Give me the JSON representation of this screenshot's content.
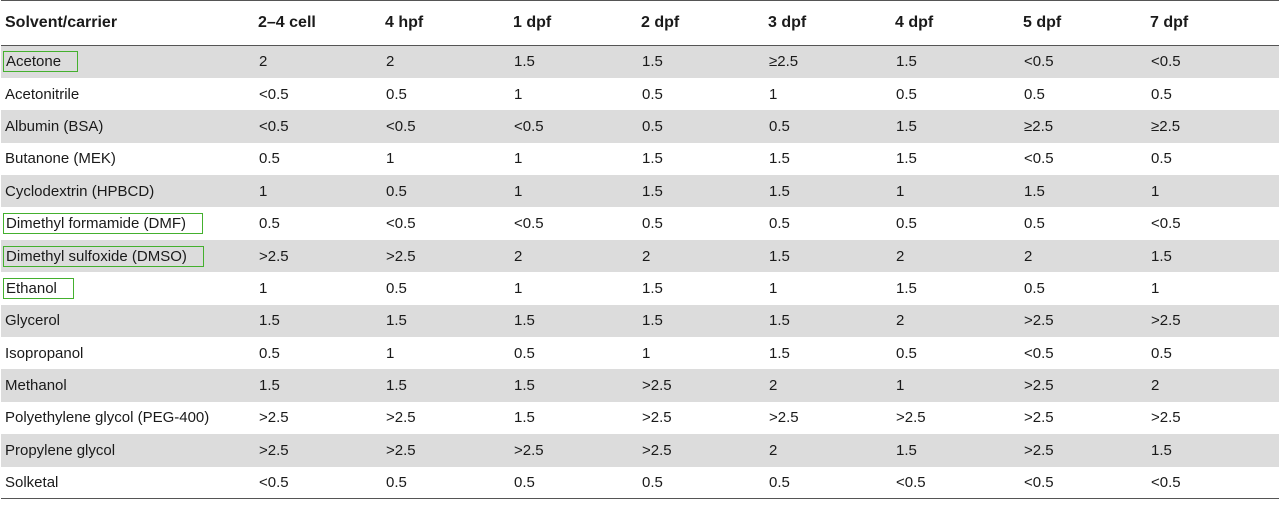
{
  "table": {
    "headers": [
      "Solvent/carrier",
      "2–4 cell",
      "4 hpf",
      "1 dpf",
      "2 dpf",
      "3 dpf",
      "4 dpf",
      "5 dpf",
      "7 dpf"
    ],
    "highlight_color": "#44b02e",
    "shade_color": "#dcdcdc",
    "rows": [
      {
        "name": "Acetone",
        "highlighted": true,
        "shaded": true,
        "values": [
          "2",
          "2",
          "1.5",
          "1.5",
          "≥2.5",
          "1.5",
          "<0.5",
          "<0.5"
        ]
      },
      {
        "name": "Acetonitrile",
        "highlighted": false,
        "shaded": false,
        "values": [
          "<0.5",
          "0.5",
          "1",
          "0.5",
          "1",
          "0.5",
          "0.5",
          "0.5"
        ]
      },
      {
        "name": "Albumin (BSA)",
        "highlighted": false,
        "shaded": true,
        "values": [
          "<0.5",
          "<0.5",
          "<0.5",
          "0.5",
          "0.5",
          "1.5",
          "≥2.5",
          "≥2.5"
        ]
      },
      {
        "name": "Butanone (MEK)",
        "highlighted": false,
        "shaded": false,
        "values": [
          "0.5",
          "1",
          "1",
          "1.5",
          "1.5",
          "1.5",
          "<0.5",
          "0.5"
        ]
      },
      {
        "name": "Cyclodextrin (HPBCD)",
        "highlighted": false,
        "shaded": true,
        "values": [
          "1",
          "0.5",
          "1",
          "1.5",
          "1.5",
          "1",
          "1.5",
          "1"
        ]
      },
      {
        "name": "Dimethyl formamide (DMF)",
        "highlighted": true,
        "shaded": false,
        "values": [
          "0.5",
          "<0.5",
          "<0.5",
          "0.5",
          "0.5",
          "0.5",
          "0.5",
          "<0.5"
        ]
      },
      {
        "name": "Dimethyl sulfoxide (DMSO)",
        "highlighted": true,
        "shaded": true,
        "values": [
          ">2.5",
          ">2.5",
          "2",
          "2",
          "1.5",
          "2",
          "2",
          "1.5"
        ]
      },
      {
        "name": "Ethanol",
        "highlighted": true,
        "shaded": false,
        "values": [
          "1",
          "0.5",
          "1",
          "1.5",
          "1",
          "1.5",
          "0.5",
          "1"
        ]
      },
      {
        "name": "Glycerol",
        "highlighted": false,
        "shaded": true,
        "values": [
          "1.5",
          "1.5",
          "1.5",
          "1.5",
          "1.5",
          "2",
          ">2.5",
          ">2.5"
        ]
      },
      {
        "name": "Isopropanol",
        "highlighted": false,
        "shaded": false,
        "values": [
          "0.5",
          "1",
          "0.5",
          "1",
          "1.5",
          "0.5",
          "<0.5",
          "0.5"
        ]
      },
      {
        "name": "Methanol",
        "highlighted": false,
        "shaded": true,
        "values": [
          "1.5",
          "1.5",
          "1.5",
          ">2.5",
          "2",
          "1",
          ">2.5",
          "2"
        ]
      },
      {
        "name": "Polyethylene glycol (PEG-400)",
        "highlighted": false,
        "shaded": false,
        "values": [
          ">2.5",
          ">2.5",
          "1.5",
          ">2.5",
          ">2.5",
          ">2.5",
          ">2.5",
          ">2.5"
        ]
      },
      {
        "name": "Propylene glycol",
        "highlighted": false,
        "shaded": true,
        "values": [
          ">2.5",
          ">2.5",
          ">2.5",
          ">2.5",
          "2",
          "1.5",
          ">2.5",
          "1.5"
        ]
      },
      {
        "name": "Solketal",
        "highlighted": false,
        "shaded": false,
        "values": [
          "<0.5",
          "0.5",
          "0.5",
          "0.5",
          "0.5",
          "<0.5",
          "<0.5",
          "<0.5"
        ]
      }
    ]
  }
}
